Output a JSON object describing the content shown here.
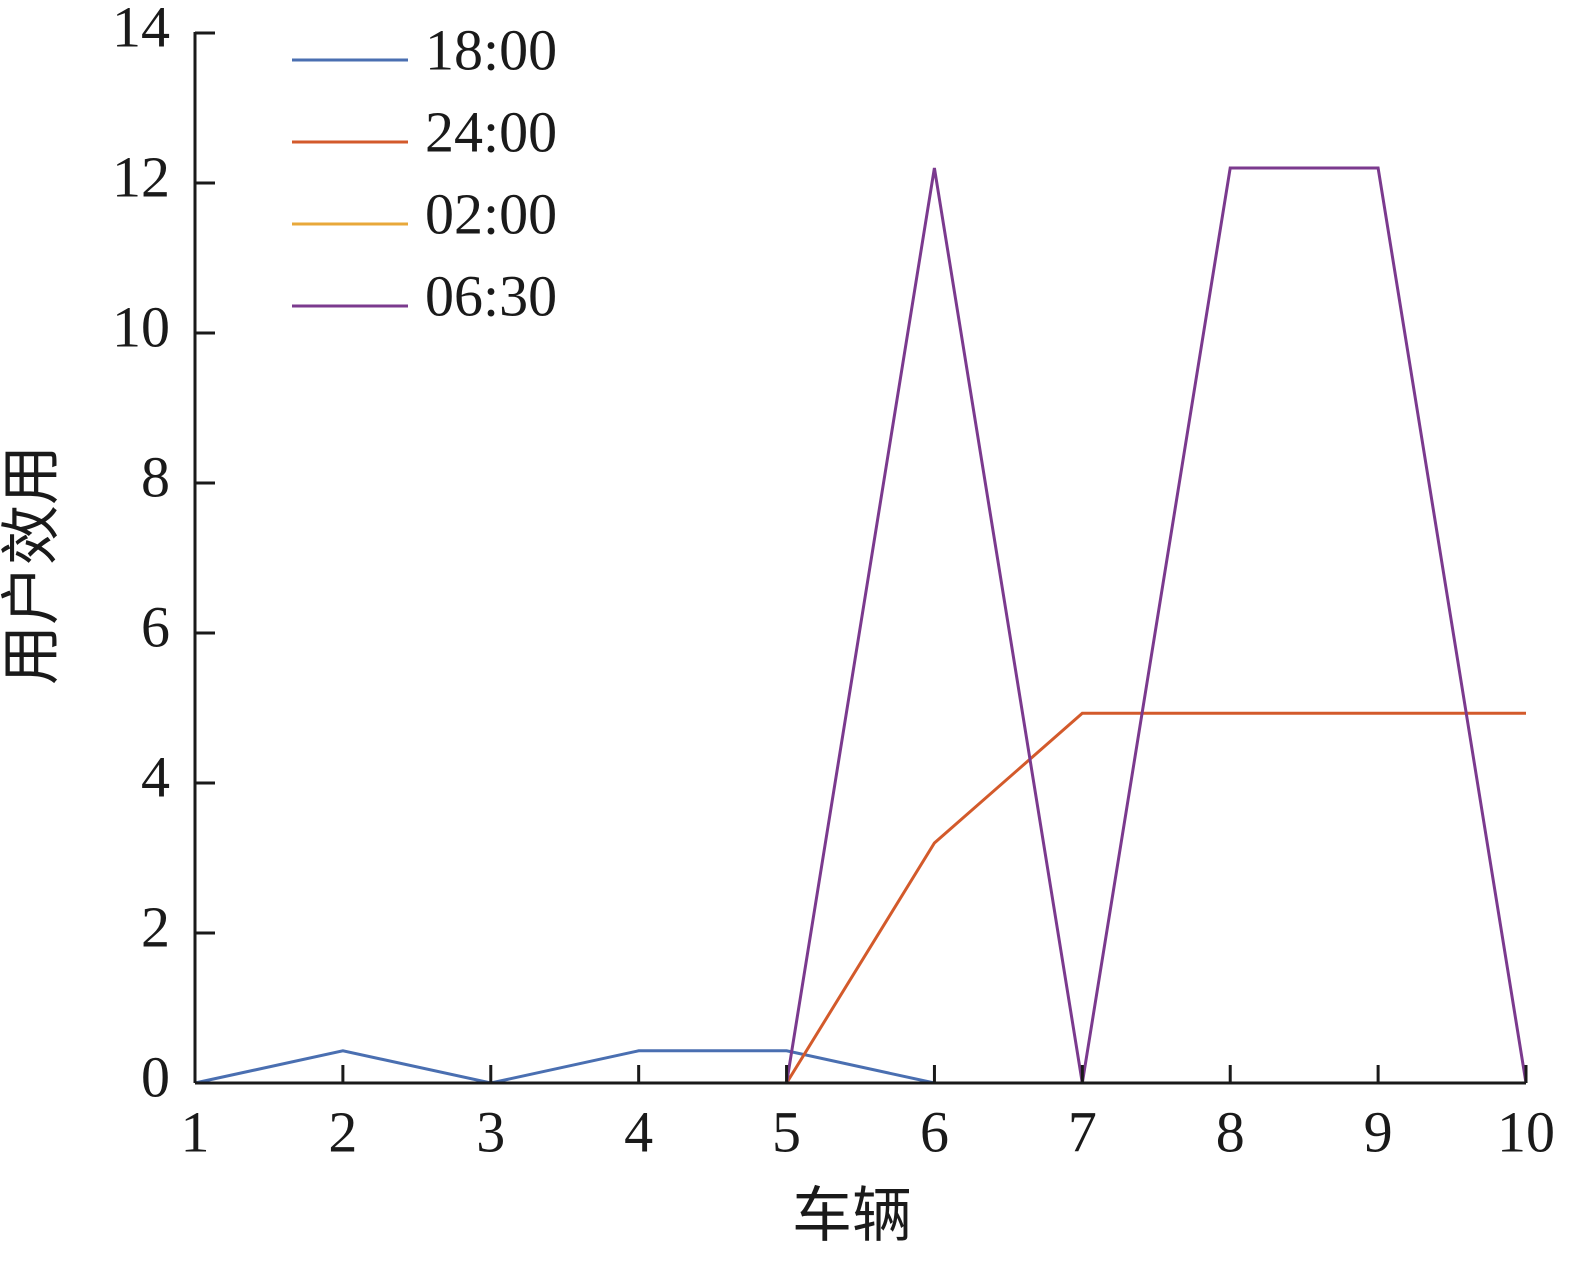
{
  "chart_data": {
    "type": "line",
    "xlabel": "车辆",
    "ylabel": "用户效用",
    "x": [
      1,
      2,
      3,
      4,
      5,
      6,
      7,
      8,
      9,
      10
    ],
    "xlim": [
      1,
      10
    ],
    "ylim": [
      0,
      14
    ],
    "yticks": [
      0,
      2,
      4,
      6,
      8,
      10,
      12,
      14
    ],
    "grid": false,
    "legend": "top-left",
    "series": [
      {
        "name": "18:00",
        "color": "#4a6fb1",
        "values": [
          0,
          0.43,
          0,
          0.43,
          0.43,
          0,
          0,
          0,
          0,
          0
        ]
      },
      {
        "name": "24:00",
        "color": "#d35a2b",
        "values": [
          0,
          0,
          0,
          0,
          0,
          3.2,
          4.93,
          4.93,
          4.93,
          4.93
        ]
      },
      {
        "name": "02:00",
        "color": "#e8a83a",
        "values": [
          0,
          0,
          0,
          0,
          0,
          0,
          0,
          0,
          0,
          0
        ]
      },
      {
        "name": "06:30",
        "color": "#7b3a8e",
        "values": [
          0,
          0,
          0,
          0,
          0,
          12.2,
          0,
          12.2,
          12.2,
          0
        ]
      }
    ]
  }
}
